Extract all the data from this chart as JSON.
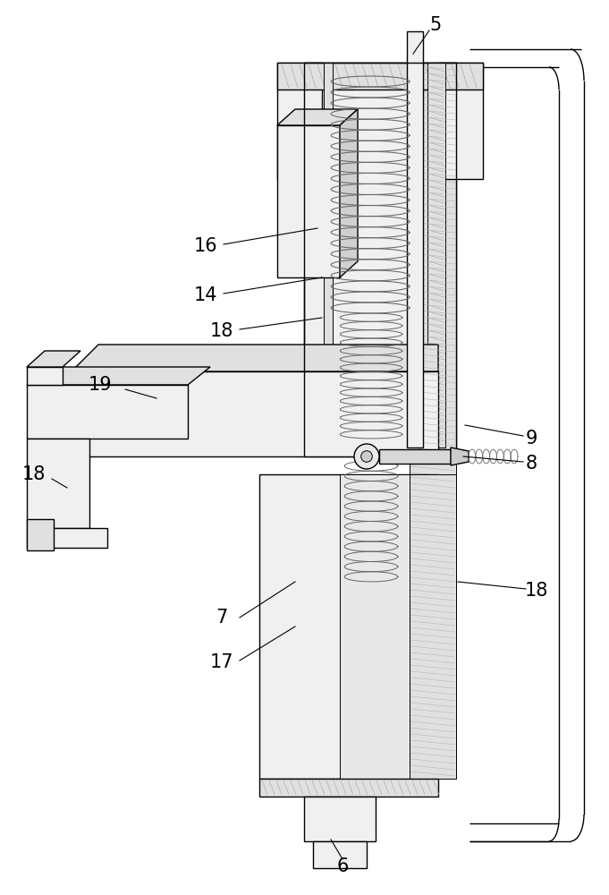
{
  "bg_color": "#ffffff",
  "lc": "#000000",
  "gray1": "#f0f0f0",
  "gray2": "#e0e0e0",
  "gray3": "#d0d0d0",
  "hatch_gray": "#c8c8c8"
}
